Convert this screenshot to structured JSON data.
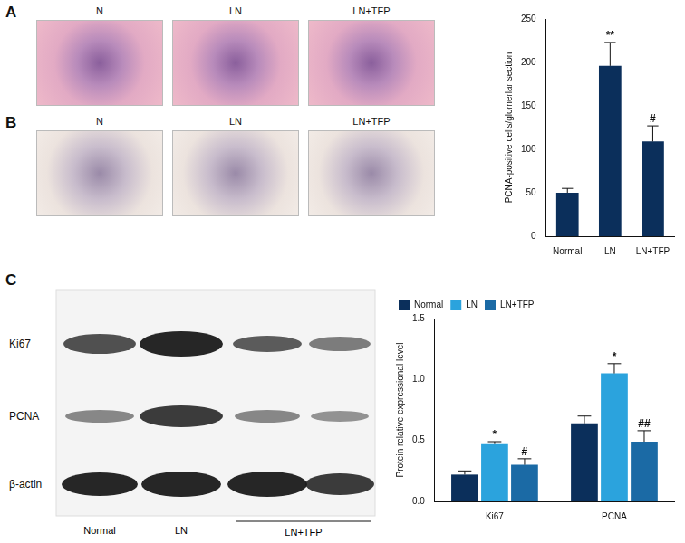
{
  "figure": {
    "panels": [
      "A",
      "B",
      "C"
    ],
    "image_labels": [
      "N",
      "LN",
      "LN+TFP"
    ],
    "blot": {
      "rows": [
        "Ki67",
        "PCNA",
        "β-actin"
      ],
      "lanes": [
        "Normal",
        "LN",
        "LN+TFP"
      ]
    }
  },
  "chart_data": [
    {
      "type": "bar",
      "y_label": "PCNA-positive cells/glomerlar section",
      "categories": [
        "Normal",
        "LN",
        "LN+TFP"
      ],
      "values": [
        50,
        196,
        109
      ],
      "errors": [
        5,
        27,
        18
      ],
      "significance": [
        null,
        "**",
        "#"
      ],
      "color": "#0b2f5b",
      "ylim": [
        0,
        250
      ],
      "yticks": [
        0,
        50,
        100,
        150,
        200,
        250
      ],
      "grid": false
    },
    {
      "type": "bar",
      "y_label": "Protein relative expressional level",
      "categories": [
        "Ki67",
        "PCNA"
      ],
      "series": [
        {
          "name": "Normal",
          "color": "#0b2f5b",
          "values": [
            0.22,
            0.64
          ],
          "errors": [
            0.03,
            0.06
          ]
        },
        {
          "name": "LN",
          "color": "#2ba3dd",
          "values": [
            0.47,
            1.05
          ],
          "errors": [
            0.02,
            0.08
          ],
          "significance": [
            "*",
            "*"
          ]
        },
        {
          "name": "LN+TFP",
          "color": "#1b6aa5",
          "values": [
            0.3,
            0.49
          ],
          "errors": [
            0.05,
            0.09
          ],
          "significance": [
            "#",
            "##"
          ]
        }
      ],
      "ylim": [
        0,
        1.5
      ],
      "yticks": [
        {
          "value": 0,
          "label": "0.0"
        },
        {
          "value": 0.5,
          "label": "0.5"
        },
        {
          "value": 1,
          "label": "1.0"
        },
        {
          "value": 1.5,
          "label": "1.5"
        }
      ],
      "grid": false,
      "legend": "top-left"
    }
  ]
}
